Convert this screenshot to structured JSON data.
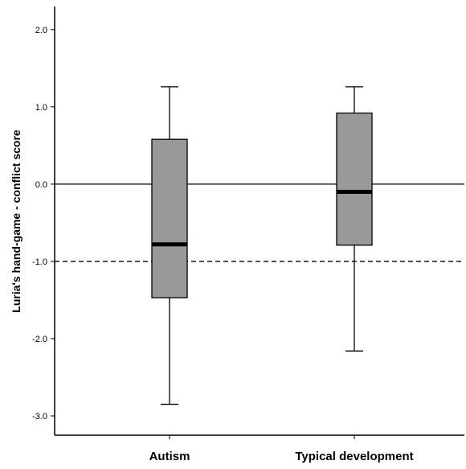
{
  "chart_data": {
    "type": "boxplot",
    "title": "",
    "xlabel": "",
    "ylabel": "Luria's hand-game - conflict score",
    "ylim": [
      -3.25,
      2.3
    ],
    "yticks": [
      -3.0,
      -2.0,
      -1.0,
      0.0,
      1.0,
      2.0
    ],
    "ytick_labels": [
      "-3.0",
      "-2.0",
      "-1.0",
      "0.0",
      "1.0",
      "2.0"
    ],
    "categories": [
      "Autism",
      "Typical development"
    ],
    "boxes": [
      {
        "category": "Autism",
        "whisker_low": -2.85,
        "q1": -1.47,
        "median": -0.78,
        "q3": 0.58,
        "whisker_high": 1.26
      },
      {
        "category": "Typical development",
        "whisker_low": -2.16,
        "q1": -0.79,
        "median": -0.1,
        "q3": 0.92,
        "whisker_high": 1.26
      }
    ],
    "reference_lines": [
      {
        "y": 0.0,
        "style": "solid"
      },
      {
        "y": -1.0,
        "style": "dashed"
      }
    ],
    "box_fill": "#999999",
    "grid": false,
    "legend": "none"
  }
}
